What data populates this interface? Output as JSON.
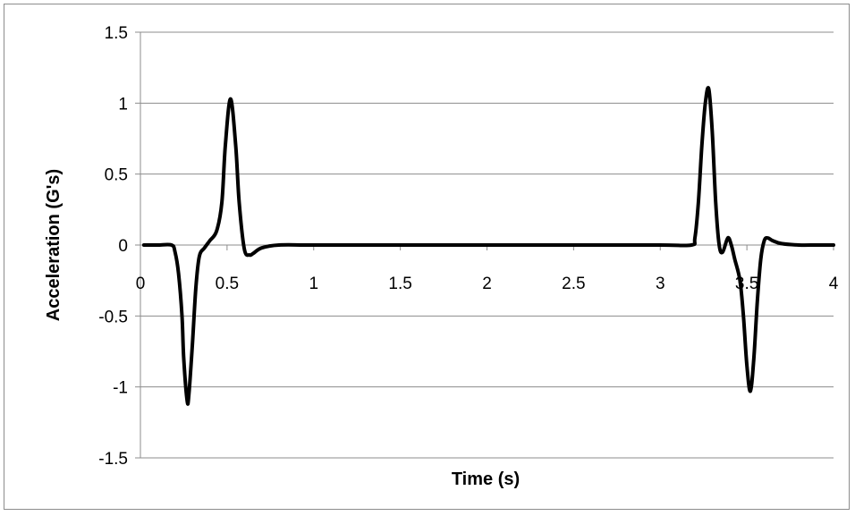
{
  "chart_data": {
    "type": "line",
    "title": "",
    "xlabel": "Time (s)",
    "ylabel": "Acceleration (G's)",
    "xlim": [
      0,
      4
    ],
    "ylim": [
      -1.5,
      1.5
    ],
    "x_ticks": [
      0,
      0.5,
      1,
      1.5,
      2,
      2.5,
      3,
      3.5,
      4
    ],
    "x_tick_labels": [
      "0",
      "0.5",
      "1",
      "1.5",
      "2",
      "2.5",
      "3",
      "3.5",
      "4"
    ],
    "y_ticks": [
      1.5,
      1,
      0.5,
      0,
      -0.5,
      -1,
      -1.5
    ],
    "y_tick_labels": [
      "1.5",
      "1",
      "0.5",
      "0",
      "-0.5",
      "-1",
      "-1.5"
    ],
    "grid": true,
    "legend": "none",
    "line_color": "#000000",
    "series": [
      {
        "x": [
          0.02,
          0.1,
          0.18,
          0.2,
          0.22,
          0.24,
          0.25,
          0.27,
          0.28,
          0.3,
          0.32,
          0.34,
          0.37,
          0.4,
          0.44,
          0.47,
          0.49,
          0.52,
          0.55,
          0.57,
          0.6,
          0.63,
          0.65,
          0.7,
          0.8,
          1.0,
          1.5,
          1.7,
          2.0,
          2.5,
          3.0,
          3.18,
          3.2,
          3.22,
          3.24,
          3.26,
          3.28,
          3.3,
          3.32,
          3.34,
          3.36,
          3.39,
          3.41,
          3.43,
          3.46,
          3.48,
          3.5,
          3.52,
          3.54,
          3.56,
          3.58,
          3.6,
          3.62,
          3.65,
          3.7,
          3.8,
          3.9,
          4.0
        ],
        "y": [
          0,
          0,
          0,
          -0.05,
          -0.2,
          -0.5,
          -0.8,
          -1.1,
          -1.05,
          -0.7,
          -0.3,
          -0.08,
          -0.02,
          0.03,
          0.1,
          0.3,
          0.7,
          1.03,
          0.7,
          0.3,
          -0.03,
          -0.07,
          -0.06,
          -0.02,
          0,
          0,
          0,
          0,
          0,
          0,
          0,
          0,
          0.05,
          0.3,
          0.7,
          1.0,
          1.1,
          0.8,
          0.3,
          0.0,
          -0.05,
          0.05,
          0.0,
          -0.1,
          -0.25,
          -0.5,
          -0.85,
          -1.03,
          -0.8,
          -0.4,
          -0.1,
          0.03,
          0.05,
          0.03,
          0.01,
          0,
          0,
          0
        ]
      }
    ]
  }
}
